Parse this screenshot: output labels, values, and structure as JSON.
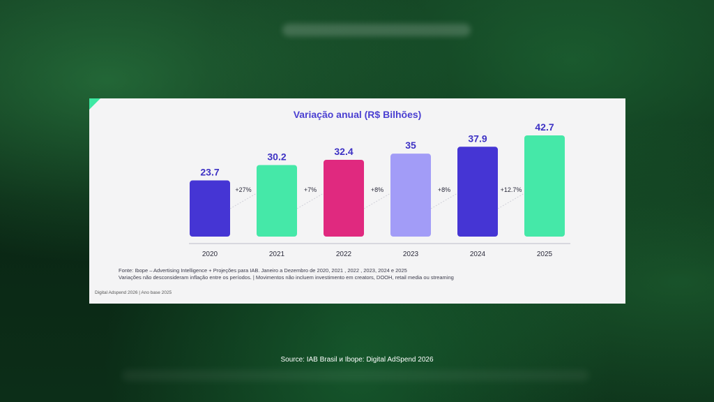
{
  "chart_data": {
    "type": "bar",
    "title": "Variação anual (R$ Bilhões)",
    "categories": [
      "2020",
      "2021",
      "2022",
      "2023",
      "2024",
      "2025"
    ],
    "values": [
      23.7,
      30.2,
      32.4,
      35,
      37.9,
      42.7
    ],
    "value_labels": [
      "23.7",
      "30.2",
      "32.4",
      "35",
      "37.9",
      "42.7"
    ],
    "growth_labels": [
      "+27%",
      "+7%",
      "+8%",
      "+8%",
      "+12.7%"
    ],
    "colors": [
      "#4535d4",
      "#45e8a8",
      "#e0297f",
      "#a29cf7",
      "#4535d4",
      "#45e8a8"
    ],
    "ylim": [
      0,
      42.7
    ],
    "xlabel": "",
    "ylabel": "",
    "grid": false
  },
  "footnote": {
    "line1": "Fonte: Ibope – Advertising Intelligence + Projeções para IAB. Janeiro a Dezembro de 2020, 2021 , 2022 , 2023, 2024 e 2025",
    "line2": "Variações não desconsideram inflação entre os períodos. | Movimentos não incluem investimento em creators, DOOH, retail  media ou streaming"
  },
  "footer_left": "Digital Adspend 2026 | Ano base 2025",
  "source": "Source: IAB Brasil и Ibope: Digital AdSpend 2026"
}
